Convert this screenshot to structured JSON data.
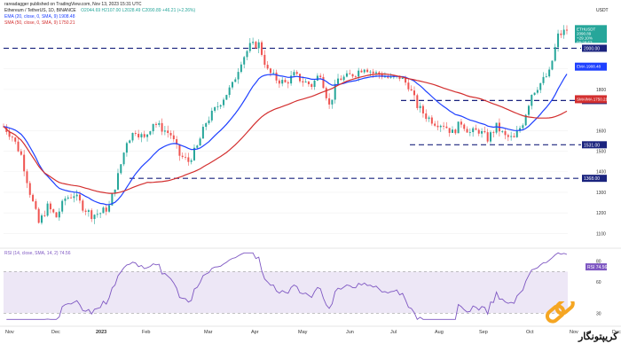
{
  "header": {
    "author": "rareadagger published on TradingView.com, Nov 13, 2023 15:31 UTC",
    "symbol_line": "Ethereum / TetherUS, 1D, BINANCE",
    "ohlc": "O2044.69 H2107.00 L2028.49 C2090.89 +46.21 (+2.26%)",
    "ema_line": "EMA (20, close, 0, SMA, 9)  1908.48",
    "sma_line": "SMA (50, close, 0, SMA, 9)  1750.21",
    "rsi_line": "RSI (14, close, SMA, 14, 2)  74.56",
    "currency": "USDT"
  },
  "colors": {
    "candle_up": "#26a69a",
    "candle_down": "#ef5350",
    "ema": "#1e40ff",
    "sma": "#d32f2f",
    "rsi": "#7e57c2",
    "rsi_band": "#ede7f6",
    "level_line": "#1a237e"
  },
  "chart_data": {
    "type": "candlestick",
    "x_ticks": [
      "Nov",
      "Dec",
      "2023",
      "Feb",
      "Mar",
      "Apr",
      "May",
      "Jun",
      "Jul",
      "Aug",
      "Sep",
      "Oct",
      "Nov",
      "Dec"
    ],
    "y_ticks": [
      1100,
      1200,
      1300,
      1400,
      1500,
      1600,
      1800,
      1900
    ],
    "ylim": [
      1050,
      2200
    ],
    "levels": [
      {
        "label": "2000.00",
        "value": 2000
      },
      {
        "label": "1746.00",
        "value": 1746
      },
      {
        "label": "1531.00",
        "value": 1531
      },
      {
        "label": "1368.00",
        "value": 1368
      }
    ],
    "badges": [
      {
        "label": "ETHUSDT 2090.89 +29.10% 08:28:53",
        "value": 2090.89
      },
      {
        "label": "EMA 1908.48",
        "value": 1908.48
      },
      {
        "label": "SMA/MA 1750.21",
        "value": 1750.21
      }
    ],
    "rsi": {
      "ylim": [
        20,
        90
      ],
      "y_ticks": [
        30,
        60,
        80
      ],
      "bands": [
        30,
        70
      ],
      "last": 74.56,
      "badge": "RSI 74.56"
    },
    "close_path": [
      [
        0,
        1620
      ],
      [
        3,
        1570
      ],
      [
        6,
        1480
      ],
      [
        9,
        1300
      ],
      [
        12,
        1150
      ],
      [
        15,
        1230
      ],
      [
        18,
        1180
      ],
      [
        21,
        1270
      ],
      [
        24,
        1290
      ],
      [
        27,
        1230
      ],
      [
        30,
        1190
      ],
      [
        33,
        1200
      ],
      [
        36,
        1230
      ],
      [
        39,
        1380
      ],
      [
        42,
        1550
      ],
      [
        45,
        1600
      ],
      [
        48,
        1560
      ],
      [
        51,
        1640
      ],
      [
        54,
        1610
      ],
      [
        57,
        1580
      ],
      [
        60,
        1480
      ],
      [
        63,
        1450
      ],
      [
        66,
        1520
      ],
      [
        69,
        1640
      ],
      [
        72,
        1700
      ],
      [
        75,
        1760
      ],
      [
        78,
        1820
      ],
      [
        81,
        1940
      ],
      [
        84,
        2010
      ],
      [
        87,
        2020
      ],
      [
        90,
        1890
      ],
      [
        93,
        1850
      ],
      [
        96,
        1830
      ],
      [
        99,
        1870
      ],
      [
        102,
        1840
      ],
      [
        105,
        1820
      ],
      [
        108,
        1880
      ],
      [
        111,
        1720
      ],
      [
        114,
        1850
      ],
      [
        117,
        1860
      ],
      [
        120,
        1880
      ],
      [
        123,
        1910
      ],
      [
        126,
        1880
      ],
      [
        129,
        1870
      ],
      [
        132,
        1850
      ],
      [
        135,
        1860
      ],
      [
        138,
        1820
      ],
      [
        141,
        1720
      ],
      [
        144,
        1670
      ],
      [
        147,
        1640
      ],
      [
        150,
        1630
      ],
      [
        153,
        1590
      ],
      [
        156,
        1640
      ],
      [
        159,
        1590
      ],
      [
        162,
        1600
      ],
      [
        165,
        1560
      ],
      [
        168,
        1620
      ],
      [
        171,
        1570
      ],
      [
        174,
        1560
      ],
      [
        177,
        1640
      ],
      [
        180,
        1780
      ],
      [
        183,
        1830
      ],
      [
        186,
        1880
      ],
      [
        189,
        2060
      ],
      [
        192,
        2090
      ]
    ]
  },
  "branding": {
    "watermark_text": "کریپتونگار"
  }
}
